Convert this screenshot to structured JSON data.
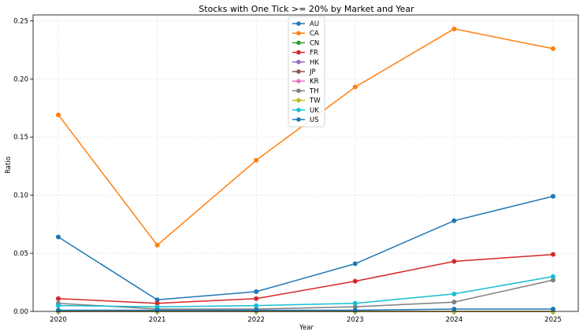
{
  "chart_data": {
    "type": "line",
    "title": "Stocks with One Tick >= 20% by Market and Year",
    "xlabel": "Year",
    "ylabel": "Ratio",
    "x": [
      2020,
      2021,
      2022,
      2023,
      2024,
      2025
    ],
    "xticks": [
      "2020",
      "2021",
      "2022",
      "2023",
      "2024",
      "2025"
    ],
    "ylim": [
      0,
      0.255
    ],
    "yticks": [
      0.0,
      0.05,
      0.1,
      0.15,
      0.2,
      0.25
    ],
    "ytick_labels": [
      "0.00",
      "0.05",
      "0.10",
      "0.15",
      "0.20",
      "0.25"
    ],
    "grid": true,
    "legend_position": "upper-center",
    "series": [
      {
        "name": "AU",
        "color": "#1f77b4",
        "values": [
          0.064,
          0.01,
          0.017,
          0.041,
          0.078,
          0.099
        ]
      },
      {
        "name": "CA",
        "color": "#ff7f0e",
        "values": [
          0.169,
          0.057,
          0.13,
          0.193,
          0.243,
          0.226
        ]
      },
      {
        "name": "CN",
        "color": "#2ca02c",
        "values": [
          0.0,
          0.0,
          0.0,
          0.0,
          0.0,
          0.0
        ]
      },
      {
        "name": "FR",
        "color": "#d62728",
        "values": [
          0.011,
          0.007,
          0.011,
          0.026,
          0.043,
          0.049
        ]
      },
      {
        "name": "HK",
        "color": "#9467bd",
        "values": [
          0.0,
          0.0,
          0.0,
          0.0,
          0.0,
          0.0
        ]
      },
      {
        "name": "JP",
        "color": "#8c564b",
        "values": [
          0.0,
          0.0,
          0.0,
          0.0,
          0.0,
          0.0
        ]
      },
      {
        "name": "KR",
        "color": "#e377c2",
        "values": [
          0.0,
          0.0,
          0.0,
          0.0,
          0.0,
          0.0
        ]
      },
      {
        "name": "TH",
        "color": "#7f7f7f",
        "values": [
          0.007,
          0.002,
          0.002,
          0.004,
          0.008,
          0.027
        ]
      },
      {
        "name": "TW",
        "color": "#bcbd22",
        "values": [
          0.0,
          0.0,
          0.0,
          0.0,
          0.0,
          0.0
        ]
      },
      {
        "name": "UK",
        "color": "#17becf",
        "values": [
          0.005,
          0.004,
          0.005,
          0.007,
          0.015,
          0.03
        ]
      },
      {
        "name": "US",
        "color": "#1f77b4",
        "values": [
          0.001,
          0.001,
          0.001,
          0.001,
          0.002,
          0.002
        ]
      }
    ]
  }
}
